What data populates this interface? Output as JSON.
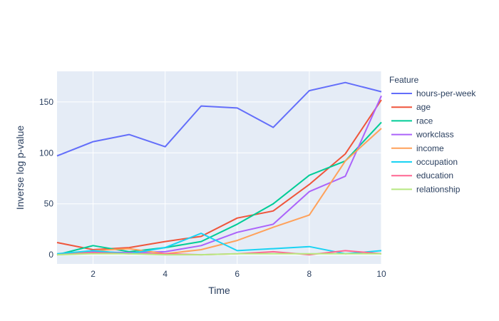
{
  "chart_data": {
    "type": "line",
    "title": "",
    "xlabel": "Time",
    "ylabel": "Inverse log p-value",
    "xlim": [
      1,
      10
    ],
    "ylim": [
      -9,
      180
    ],
    "x_ticks": [
      2,
      4,
      6,
      8,
      10
    ],
    "y_ticks": [
      0,
      50,
      100,
      150
    ],
    "grid": true,
    "legend_title": "Feature",
    "legend_position": "right",
    "x": [
      1,
      2,
      3,
      4,
      5,
      6,
      7,
      8,
      9,
      10
    ],
    "series": [
      {
        "name": "hours-per-week",
        "color": "#636efa",
        "values": [
          97,
          111,
          118,
          106,
          146,
          144,
          125,
          161,
          169,
          160
        ]
      },
      {
        "name": "age",
        "color": "#ef553b",
        "values": [
          12,
          5,
          7,
          13,
          18,
          36,
          43,
          69,
          99,
          152
        ]
      },
      {
        "name": "race",
        "color": "#00cc96",
        "values": [
          0,
          9,
          3,
          7,
          13,
          30,
          50,
          78,
          92,
          130
        ]
      },
      {
        "name": "workclass",
        "color": "#ab63fa",
        "values": [
          0,
          3,
          2,
          3,
          9,
          22,
          30,
          62,
          77,
          156
        ]
      },
      {
        "name": "income",
        "color": "#ffa15a",
        "values": [
          0,
          4,
          6,
          1,
          5,
          14,
          27,
          39,
          92,
          124
        ]
      },
      {
        "name": "occupation",
        "color": "#19d3f3",
        "values": [
          1,
          4,
          1,
          7,
          21,
          4,
          6,
          8,
          1,
          4
        ]
      },
      {
        "name": "education",
        "color": "#ff6692",
        "values": [
          0,
          2,
          1,
          1,
          0,
          1,
          3,
          0,
          4,
          1
        ]
      },
      {
        "name": "relationship",
        "color": "#b6e880",
        "values": [
          0,
          1,
          1,
          0,
          0,
          1,
          1,
          1,
          1,
          1
        ]
      }
    ]
  }
}
